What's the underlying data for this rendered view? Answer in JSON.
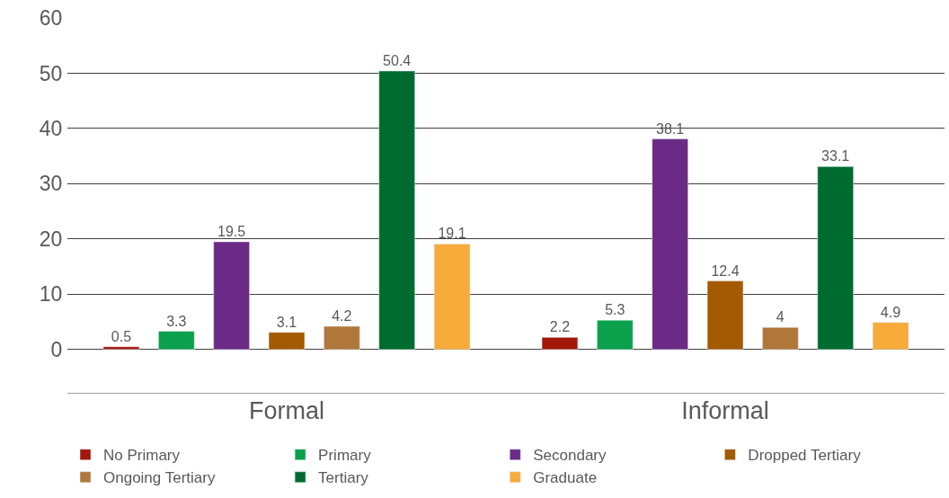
{
  "chart_data": {
    "type": "bar",
    "categories": [
      "Formal",
      "Informal"
    ],
    "series": [
      {
        "name": "No Primary",
        "color": "#a3170a",
        "values": [
          0.5,
          2.2
        ]
      },
      {
        "name": "Primary",
        "color": "#0ba14c",
        "values": [
          3.3,
          5.3
        ]
      },
      {
        "name": "Secondary",
        "color": "#6a2a85",
        "values": [
          19.5,
          38.1
        ]
      },
      {
        "name": "Dropped Tertiary",
        "color": "#a35a00",
        "values": [
          3.1,
          12.4
        ]
      },
      {
        "name": "Ongoing Tertiary",
        "color": "#b0773a",
        "values": [
          4.2,
          4
        ]
      },
      {
        "name": "Tertiary",
        "color": "#006b2e",
        "values": [
          50.4,
          33.1
        ]
      },
      {
        "name": "Graduate",
        "color": "#f6ab3b",
        "values": [
          19.1,
          4.9
        ]
      }
    ],
    "ylim": [
      -8,
      60
    ],
    "yticks": [
      0,
      10,
      20,
      30,
      40,
      50,
      60
    ],
    "grid": "y",
    "legend": "bottom",
    "data_labels": true
  }
}
